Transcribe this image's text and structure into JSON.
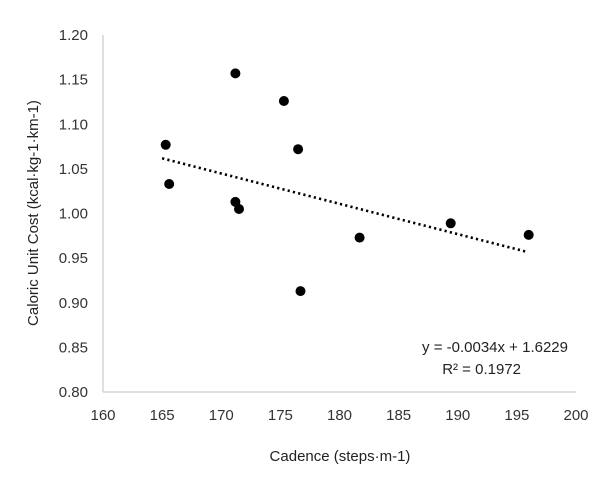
{
  "chart_data": {
    "type": "scatter",
    "title": "",
    "xlabel": "Cadence (steps·m-1)",
    "ylabel": "Caloric Unit Cost (kcal·kg-1·km-1)",
    "xlim": [
      160,
      200
    ],
    "ylim": [
      0.8,
      1.2
    ],
    "xticks": [
      "160",
      "165",
      "170",
      "175",
      "180",
      "185",
      "190",
      "195",
      "200"
    ],
    "yticks": [
      "0.80",
      "0.85",
      "0.90",
      "0.95",
      "1.00",
      "1.05",
      "1.10",
      "1.15",
      "1.20"
    ],
    "grid": false,
    "legend": "none",
    "marker_color": "#000000",
    "points": [
      {
        "x": 165.3,
        "y": 1.077
      },
      {
        "x": 165.6,
        "y": 1.033
      },
      {
        "x": 171.2,
        "y": 1.157
      },
      {
        "x": 171.2,
        "y": 1.013
      },
      {
        "x": 171.5,
        "y": 1.005
      },
      {
        "x": 175.3,
        "y": 1.126
      },
      {
        "x": 176.5,
        "y": 1.072
      },
      {
        "x": 176.7,
        "y": 0.913
      },
      {
        "x": 181.7,
        "y": 0.973
      },
      {
        "x": 189.4,
        "y": 0.989
      },
      {
        "x": 196.0,
        "y": 0.976
      }
    ],
    "trendline": {
      "type": "linear",
      "style": "dotted",
      "x_range": [
        165,
        195.8
      ],
      "slope": -0.0034,
      "intercept": 1.6229,
      "equation_label": "y = -0.0034x + 1.6229",
      "r2_label": "R² = 0.1972"
    }
  }
}
